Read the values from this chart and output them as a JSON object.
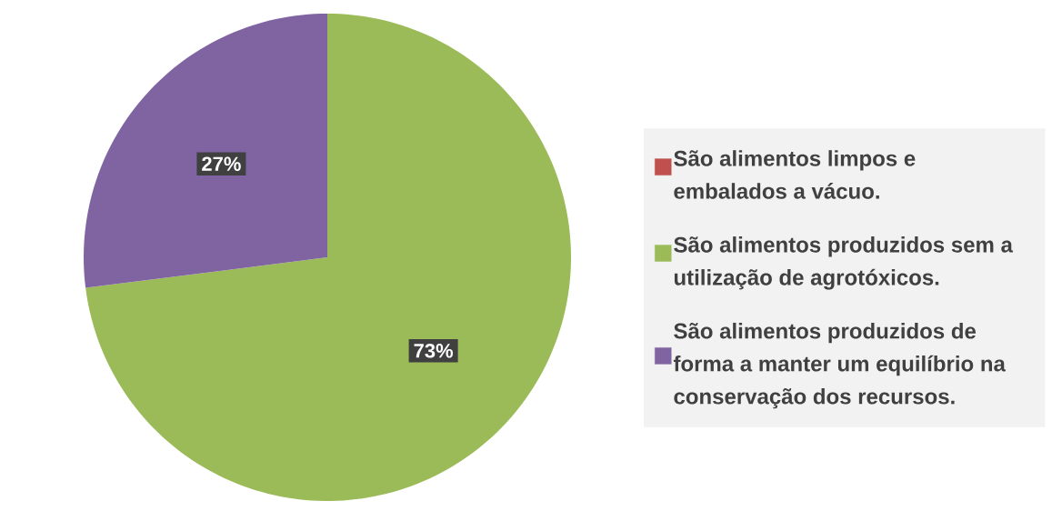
{
  "chart_data": {
    "type": "pie",
    "categories": [
      "São alimentos limpos e embalados a vácuo.",
      "São alimentos produzidos sem a utilização de agrotóxicos.",
      "São alimentos produzidos de forma a manter um equilíbrio na conservação dos recursos."
    ],
    "values": [
      0,
      73,
      27
    ],
    "colors": [
      "#c0504d",
      "#9bbb59",
      "#8064a2"
    ],
    "value_labels": [
      null,
      "73%",
      "27%"
    ],
    "legend": "right"
  }
}
